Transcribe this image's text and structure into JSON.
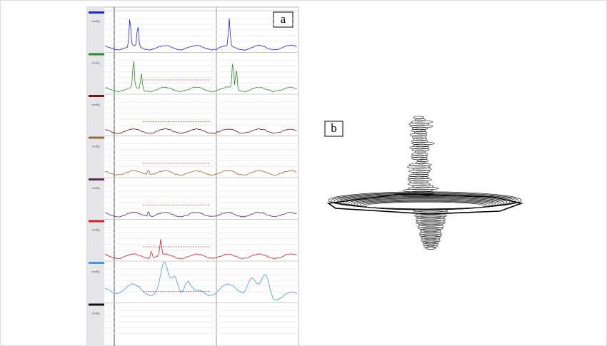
{
  "panels": [
    {
      "label": "a"
    },
    {
      "label": "b"
    }
  ],
  "axis_unit": "mmHg"
}
